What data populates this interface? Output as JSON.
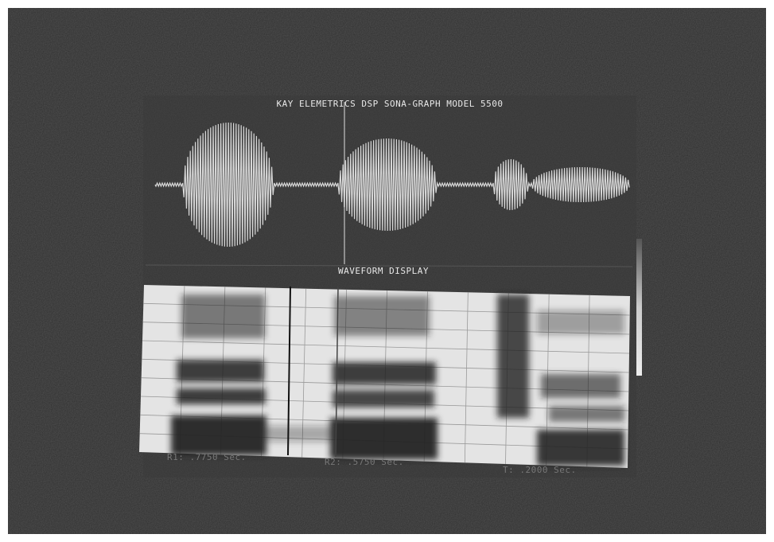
{
  "screen": {
    "title": "KAY ELEMETRICS DSP SONA-GRAPH MODEL 5500",
    "panel_label": "WAVEFORM DISPLAY",
    "readouts": [
      "R1: .7750 Sec.",
      "R2: .5750 Sec.",
      "T: .2000 Sec."
    ]
  }
}
